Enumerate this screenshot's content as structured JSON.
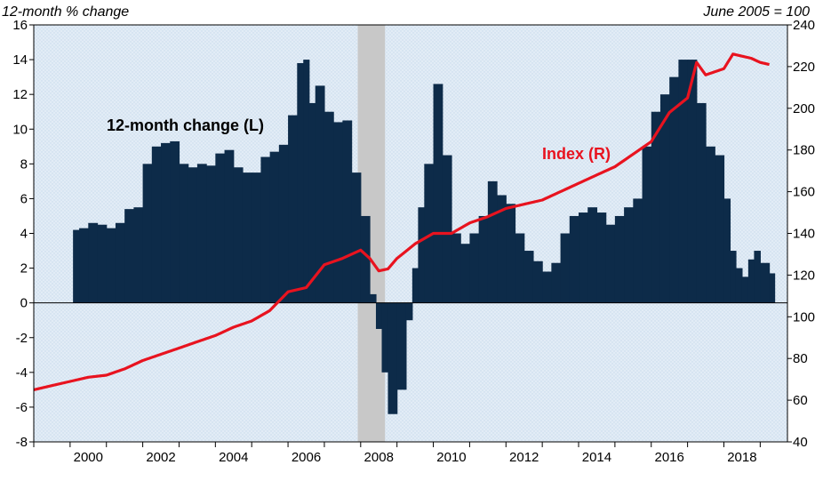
{
  "chart_data": {
    "type": "bar",
    "left_axis_label": "12-month % change",
    "right_axis_label": "June 2005 = 100",
    "annotations": {
      "change": "12-month change (L)",
      "index": "Index (R)"
    },
    "x_ticks": [
      "2000",
      "2002",
      "2004",
      "2006",
      "2008",
      "2010",
      "2012",
      "2014",
      "2016",
      "2018"
    ],
    "y_left_ticks": [
      "16",
      "14",
      "12",
      "10",
      "8",
      "6",
      "4",
      "2",
      "0",
      "-2",
      "-4",
      "-6",
      "-8"
    ],
    "y_right_ticks": [
      "240",
      "220",
      "200",
      "180",
      "160",
      "140",
      "120",
      "100",
      "80",
      "60",
      "40"
    ],
    "ylim_left": [
      -8,
      16
    ],
    "ylim_right": [
      40,
      240
    ],
    "xlim": [
      1999.0,
      2019.75
    ],
    "shaded_period": [
      2007.92,
      2008.67
    ],
    "colors": {
      "bars": "#0d2b49",
      "index_line": "#e8131f",
      "recession": "#c8c8c8",
      "plot_bg": "#dce9f5"
    },
    "series": [
      {
        "name": "12-month change (L)",
        "kind": "bar",
        "x": [
          2000.08,
          2000.25,
          2000.5,
          2000.75,
          2001.0,
          2001.25,
          2001.5,
          2001.75,
          2002.0,
          2002.25,
          2002.5,
          2002.75,
          2003.0,
          2003.25,
          2003.5,
          2003.75,
          2004.0,
          2004.25,
          2004.5,
          2004.75,
          2005.0,
          2005.25,
          2005.5,
          2005.75,
          2006.0,
          2006.25,
          2006.42,
          2006.58,
          2006.75,
          2007.0,
          2007.25,
          2007.5,
          2007.75,
          2008.0,
          2008.25,
          2008.42,
          2008.58,
          2008.75,
          2009.0,
          2009.25,
          2009.42,
          2009.58,
          2009.75,
          2010.0,
          2010.25,
          2010.5,
          2010.75,
          2011.0,
          2011.25,
          2011.5,
          2011.75,
          2012.0,
          2012.25,
          2012.5,
          2012.75,
          2013.0,
          2013.25,
          2013.5,
          2013.75,
          2014.0,
          2014.25,
          2014.5,
          2014.75,
          2015.0,
          2015.25,
          2015.5,
          2015.75,
          2016.0,
          2016.25,
          2016.5,
          2016.75,
          2017.0,
          2017.25,
          2017.5,
          2017.75,
          2018.0,
          2018.17,
          2018.33,
          2018.5,
          2018.67,
          2018.83,
          2019.0,
          2019.25
        ],
        "values": [
          4.2,
          4.3,
          4.6,
          4.5,
          4.3,
          4.6,
          5.4,
          5.5,
          8.0,
          9.0,
          9.2,
          9.3,
          8.0,
          7.8,
          8.0,
          7.9,
          8.6,
          8.8,
          7.8,
          7.5,
          7.5,
          8.4,
          8.7,
          9.1,
          10.8,
          13.8,
          14.0,
          11.5,
          12.5,
          11.0,
          10.4,
          10.5,
          7.5,
          5.0,
          0.5,
          -1.5,
          -4.0,
          -6.4,
          -5.0,
          -1.0,
          2.0,
          5.5,
          8.0,
          12.6,
          8.5,
          4.0,
          3.4,
          4.0,
          5.0,
          7.0,
          6.2,
          5.7,
          4.0,
          3.0,
          2.4,
          1.8,
          2.3,
          4.0,
          5.0,
          5.2,
          5.5,
          5.2,
          4.5,
          5.0,
          5.5,
          6.0,
          9.0,
          11.0,
          12.0,
          13.0,
          14.0,
          14.0,
          11.5,
          9.0,
          8.5,
          6.0,
          3.0,
          2.0,
          1.5,
          2.5,
          3.0,
          2.3,
          1.7
        ]
      },
      {
        "name": "Index (R)",
        "kind": "line",
        "x": [
          1999.0,
          1999.5,
          2000.0,
          2000.5,
          2001.0,
          2001.5,
          2002.0,
          2002.5,
          2003.0,
          2003.5,
          2004.0,
          2004.5,
          2005.0,
          2005.5,
          2006.0,
          2006.5,
          2007.0,
          2007.5,
          2008.0,
          2008.25,
          2008.5,
          2008.75,
          2009.0,
          2009.5,
          2010.0,
          2010.5,
          2011.0,
          2011.5,
          2012.0,
          2012.5,
          2013.0,
          2013.5,
          2014.0,
          2014.5,
          2015.0,
          2015.5,
          2016.0,
          2016.5,
          2017.0,
          2017.25,
          2017.5,
          2018.0,
          2018.25,
          2018.5,
          2018.75,
          2019.0,
          2019.25
        ],
        "values": [
          65,
          67,
          69,
          71,
          72,
          75,
          79,
          82,
          85,
          88,
          91,
          95,
          98,
          103,
          112,
          114,
          125,
          128,
          132,
          128,
          122,
          123,
          128,
          135,
          140,
          140,
          145,
          148,
          152,
          154,
          156,
          160,
          164,
          168,
          172,
          178,
          184,
          198,
          205,
          222,
          216,
          219,
          226,
          225,
          224,
          222,
          221
        ]
      }
    ]
  }
}
